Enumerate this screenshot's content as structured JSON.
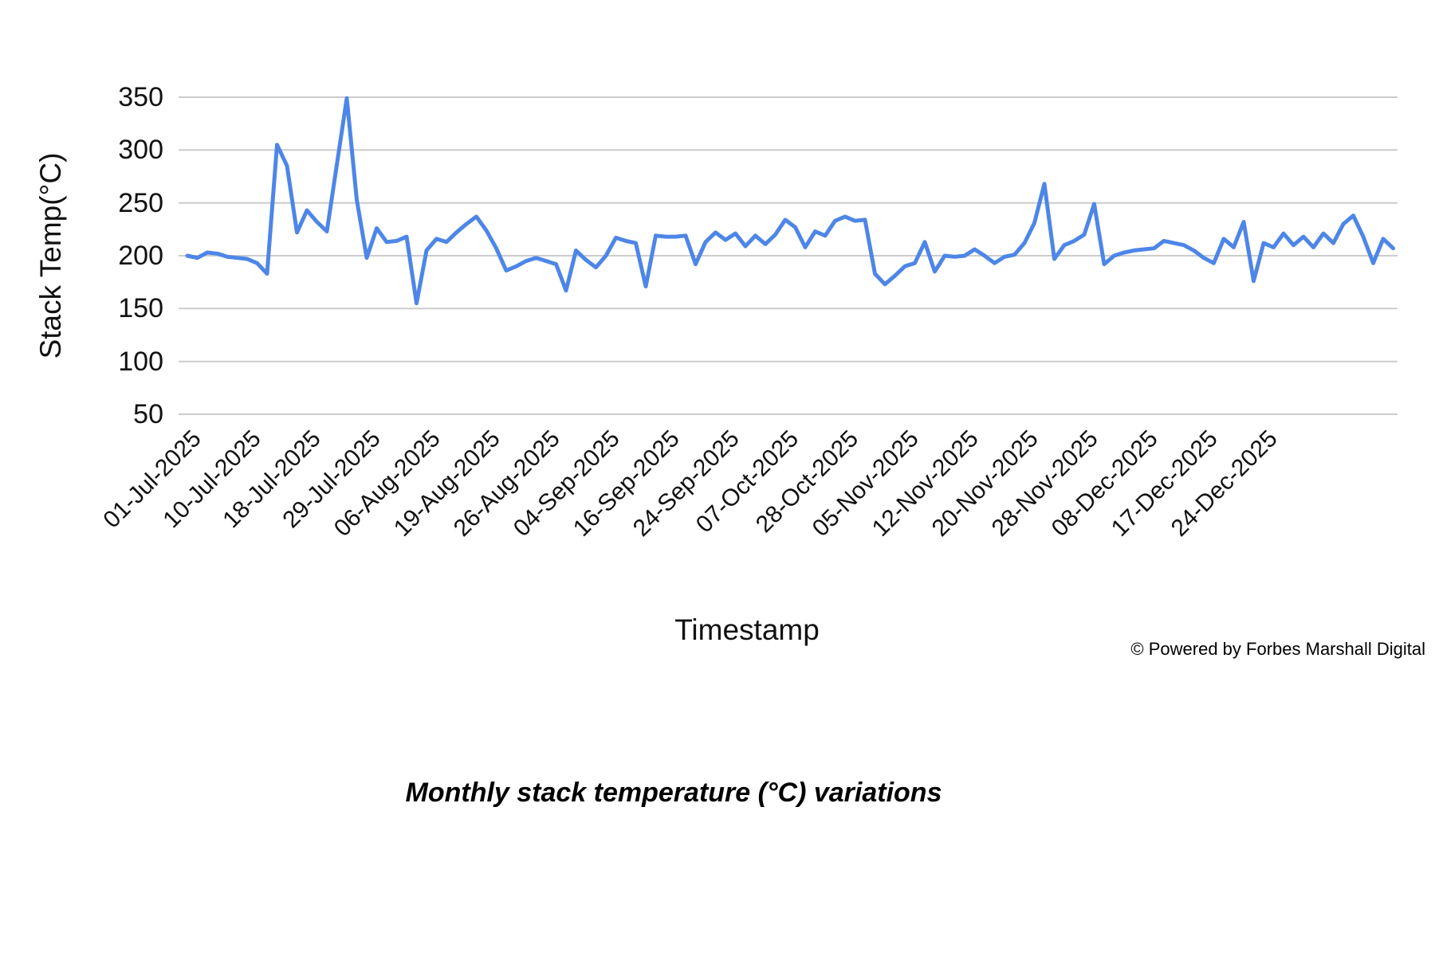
{
  "chart_data": {
    "type": "line",
    "title": "",
    "xlabel": "Timestamp",
    "ylabel": "Stack Temp(°C)",
    "ylim": [
      50,
      350
    ],
    "yticks": [
      350,
      300,
      250,
      200,
      150,
      100,
      50
    ],
    "grid": "horizontal",
    "grid_color": "#cccccc",
    "line_color": "#4d86e8",
    "legend": "none",
    "x_tick_labels": [
      {
        "index": 0,
        "label": "01-Jul-2025"
      },
      {
        "index": 6,
        "label": "10-Jul-2025"
      },
      {
        "index": 12,
        "label": "18-Jul-2025"
      },
      {
        "index": 18,
        "label": "29-Jul-2025"
      },
      {
        "index": 24,
        "label": "06-Aug-2025"
      },
      {
        "index": 30,
        "label": "19-Aug-2025"
      },
      {
        "index": 36,
        "label": "26-Aug-2025"
      },
      {
        "index": 42,
        "label": "04-Sep-2025"
      },
      {
        "index": 48,
        "label": "16-Sep-2025"
      },
      {
        "index": 54,
        "label": "24-Sep-2025"
      },
      {
        "index": 60,
        "label": "07-Oct-2025"
      },
      {
        "index": 66,
        "label": "28-Oct-2025"
      },
      {
        "index": 72,
        "label": "05-Nov-2025"
      },
      {
        "index": 78,
        "label": "12-Nov-2025"
      },
      {
        "index": 84,
        "label": "20-Nov-2025"
      },
      {
        "index": 90,
        "label": "28-Nov-2025"
      },
      {
        "index": 96,
        "label": "08-Dec-2025"
      },
      {
        "index": 102,
        "label": "17-Dec-2025"
      },
      {
        "index": 108,
        "label": "24-Dec-2025"
      }
    ],
    "series": [
      {
        "name": "Stack Temp",
        "values": [
          200,
          198,
          203,
          202,
          199,
          198,
          197,
          193,
          183,
          305,
          285,
          222,
          243,
          232,
          223,
          286,
          349,
          253,
          198,
          226,
          213,
          214,
          218,
          155,
          205,
          216,
          213,
          222,
          230,
          237,
          224,
          207,
          186,
          190,
          195,
          198,
          195,
          192,
          167,
          205,
          196,
          189,
          200,
          217,
          214,
          212,
          171,
          219,
          218,
          218,
          219,
          192,
          213,
          222,
          215,
          221,
          209,
          219,
          211,
          220,
          234,
          227,
          208,
          223,
          219,
          233,
          237,
          233,
          234,
          183,
          173,
          181,
          190,
          193,
          213,
          185,
          200,
          199,
          200,
          206,
          200,
          193,
          199,
          201,
          212,
          231,
          268,
          197,
          210,
          214,
          220,
          249,
          192,
          200,
          203,
          205,
          206,
          207,
          214,
          212,
          210,
          205,
          198,
          193,
          216,
          208,
          232,
          176,
          212,
          208,
          221,
          210,
          218,
          208,
          221,
          212,
          230,
          238,
          218,
          193,
          216,
          207
        ]
      }
    ]
  },
  "axes": {
    "y_title": "Stack Temp(°C)",
    "x_title": "Timestamp"
  },
  "footer": {
    "copyright": "© Powered by Forbes Marshall Digital",
    "caption": "Monthly stack temperature (°C) variations"
  }
}
